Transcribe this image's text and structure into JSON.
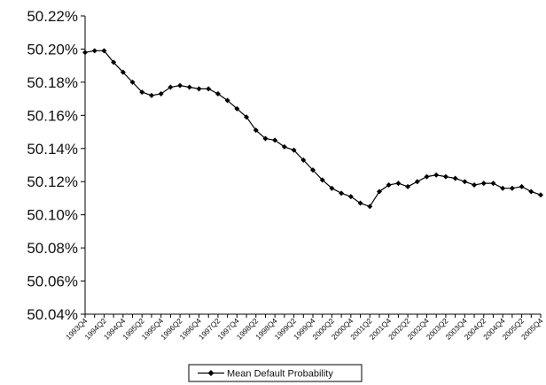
{
  "chart_data": {
    "type": "line",
    "title": "",
    "xlabel": "",
    "ylabel": "",
    "ylim": [
      50.04,
      50.22
    ],
    "y_ticks": [
      "50.04%",
      "50.06%",
      "50.08%",
      "50.10%",
      "50.12%",
      "50.14%",
      "50.16%",
      "50.18%",
      "50.20%",
      "50.22%"
    ],
    "y_tick_values": [
      50.04,
      50.06,
      50.08,
      50.1,
      50.12,
      50.14,
      50.16,
      50.18,
      50.2,
      50.22
    ],
    "x_tick_labels": [
      "1993Q4",
      "1994Q2",
      "1994Q4",
      "1995Q2",
      "1995Q4",
      "1996Q2",
      "1996Q4",
      "1997Q2",
      "1997Q4",
      "1998Q2",
      "1998Q4",
      "1999Q2",
      "1999Q4",
      "2000Q2",
      "2000Q4",
      "2001Q2",
      "2001Q4",
      "2002Q2",
      "2002Q4",
      "2003Q2",
      "2003Q4",
      "2004Q2",
      "2004Q4",
      "2005Q2",
      "2005Q4"
    ],
    "grid": false,
    "legend_position": "bottom-center",
    "series": [
      {
        "name": "Mean Default Probability",
        "color": "#000000",
        "marker": "diamond",
        "x": [
          "1993Q4",
          "1994Q1",
          "1994Q2",
          "1994Q3",
          "1994Q4",
          "1995Q1",
          "1995Q2",
          "1995Q3",
          "1995Q4",
          "1996Q1",
          "1996Q2",
          "1996Q3",
          "1996Q4",
          "1997Q1",
          "1997Q2",
          "1997Q3",
          "1997Q4",
          "1998Q1",
          "1998Q2",
          "1998Q3",
          "1998Q4",
          "1999Q1",
          "1999Q2",
          "1999Q3",
          "1999Q4",
          "2000Q1",
          "2000Q2",
          "2000Q3",
          "2000Q4",
          "2001Q1",
          "2001Q2",
          "2001Q3",
          "2001Q4",
          "2002Q1",
          "2002Q2",
          "2002Q3",
          "2002Q4",
          "2003Q1",
          "2003Q2",
          "2003Q3",
          "2003Q4",
          "2004Q1",
          "2004Q2",
          "2004Q3",
          "2004Q4",
          "2005Q1",
          "2005Q2",
          "2005Q3",
          "2005Q4"
        ],
        "values": [
          50.198,
          50.199,
          50.199,
          50.192,
          50.186,
          50.18,
          50.174,
          50.172,
          50.173,
          50.177,
          50.178,
          50.177,
          50.176,
          50.176,
          50.173,
          50.169,
          50.164,
          50.159,
          50.151,
          50.146,
          50.145,
          50.141,
          50.139,
          50.133,
          50.127,
          50.121,
          50.116,
          50.113,
          50.111,
          50.107,
          50.105,
          50.114,
          50.118,
          50.119,
          50.117,
          50.12,
          50.123,
          50.124,
          50.123,
          50.122,
          50.12,
          50.118,
          50.119,
          50.119,
          50.116,
          50.116,
          50.117,
          50.114,
          50.112
        ]
      }
    ]
  }
}
